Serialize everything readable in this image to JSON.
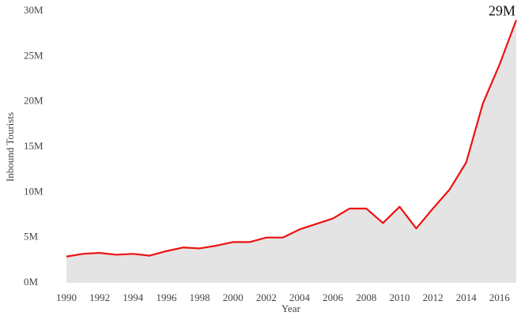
{
  "chart_data": {
    "type": "area",
    "x_label": "Year",
    "y_label": "Inbound Tourists",
    "annotation": "29M",
    "x": [
      1990,
      1991,
      1992,
      1993,
      1994,
      1995,
      1996,
      1997,
      1998,
      1999,
      2000,
      2001,
      2002,
      2003,
      2004,
      2005,
      2006,
      2007,
      2008,
      2009,
      2010,
      2011,
      2012,
      2013,
      2014,
      2015,
      2016,
      2017
    ],
    "values": [
      2.9,
      3.2,
      3.3,
      3.1,
      3.2,
      3.0,
      3.5,
      3.9,
      3.8,
      4.1,
      4.5,
      4.5,
      5.0,
      5.0,
      5.9,
      6.5,
      7.1,
      8.2,
      8.2,
      6.6,
      8.4,
      6.0,
      8.2,
      10.3,
      13.3,
      19.8,
      24.1,
      29.0
    ],
    "color": "#ee1111",
    "fill": "#e4e4e4",
    "xlim": [
      1990,
      2017
    ],
    "xticks": [
      1990,
      1992,
      1994,
      1996,
      1998,
      2000,
      2002,
      2004,
      2006,
      2008,
      2010,
      2012,
      2014,
      2016
    ],
    "ylim": [
      0,
      30
    ],
    "yticks": [
      {
        "value": 0,
        "label": "0M"
      },
      {
        "value": 5,
        "label": "5M"
      },
      {
        "value": 10,
        "label": "10M"
      },
      {
        "value": 15,
        "label": "15M"
      },
      {
        "value": 20,
        "label": "20M"
      },
      {
        "value": 25,
        "label": "25M"
      },
      {
        "value": 30,
        "label": "30M"
      }
    ],
    "grid": false
  }
}
